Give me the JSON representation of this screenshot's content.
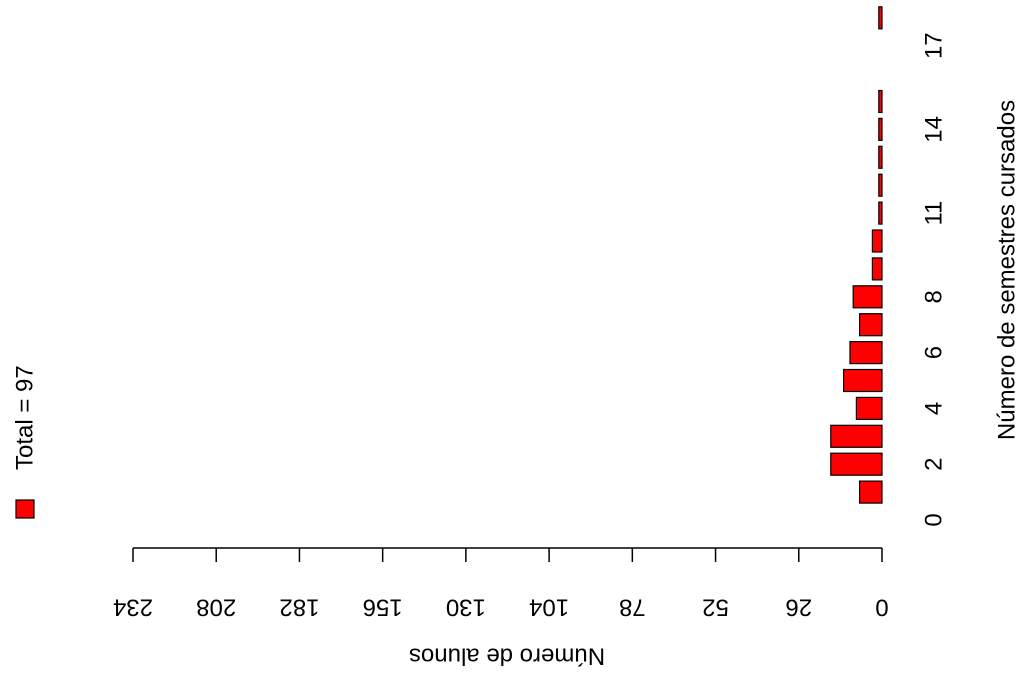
{
  "chart_data": {
    "type": "bar",
    "orientation": "horizontal",
    "x_label": "Número de alunos",
    "y_label": "Número de semestres cursados",
    "categories": [
      "0",
      null,
      "2",
      null,
      "4",
      null,
      "6",
      null,
      "8",
      null,
      null,
      "11",
      null,
      null,
      "14",
      null,
      null,
      "17",
      null
    ],
    "series": [
      {
        "name": "Total = 97",
        "color": "#ff0000",
        "values": [
          0,
          7,
          16,
          16,
          8,
          12,
          10,
          7,
          9,
          3,
          3,
          1,
          1,
          1,
          1,
          1,
          0,
          0,
          1
        ]
      }
    ],
    "xlim": [
      0,
      234
    ],
    "xticks": [
      0,
      26,
      52,
      78,
      104,
      130,
      156,
      182,
      208,
      234
    ]
  }
}
